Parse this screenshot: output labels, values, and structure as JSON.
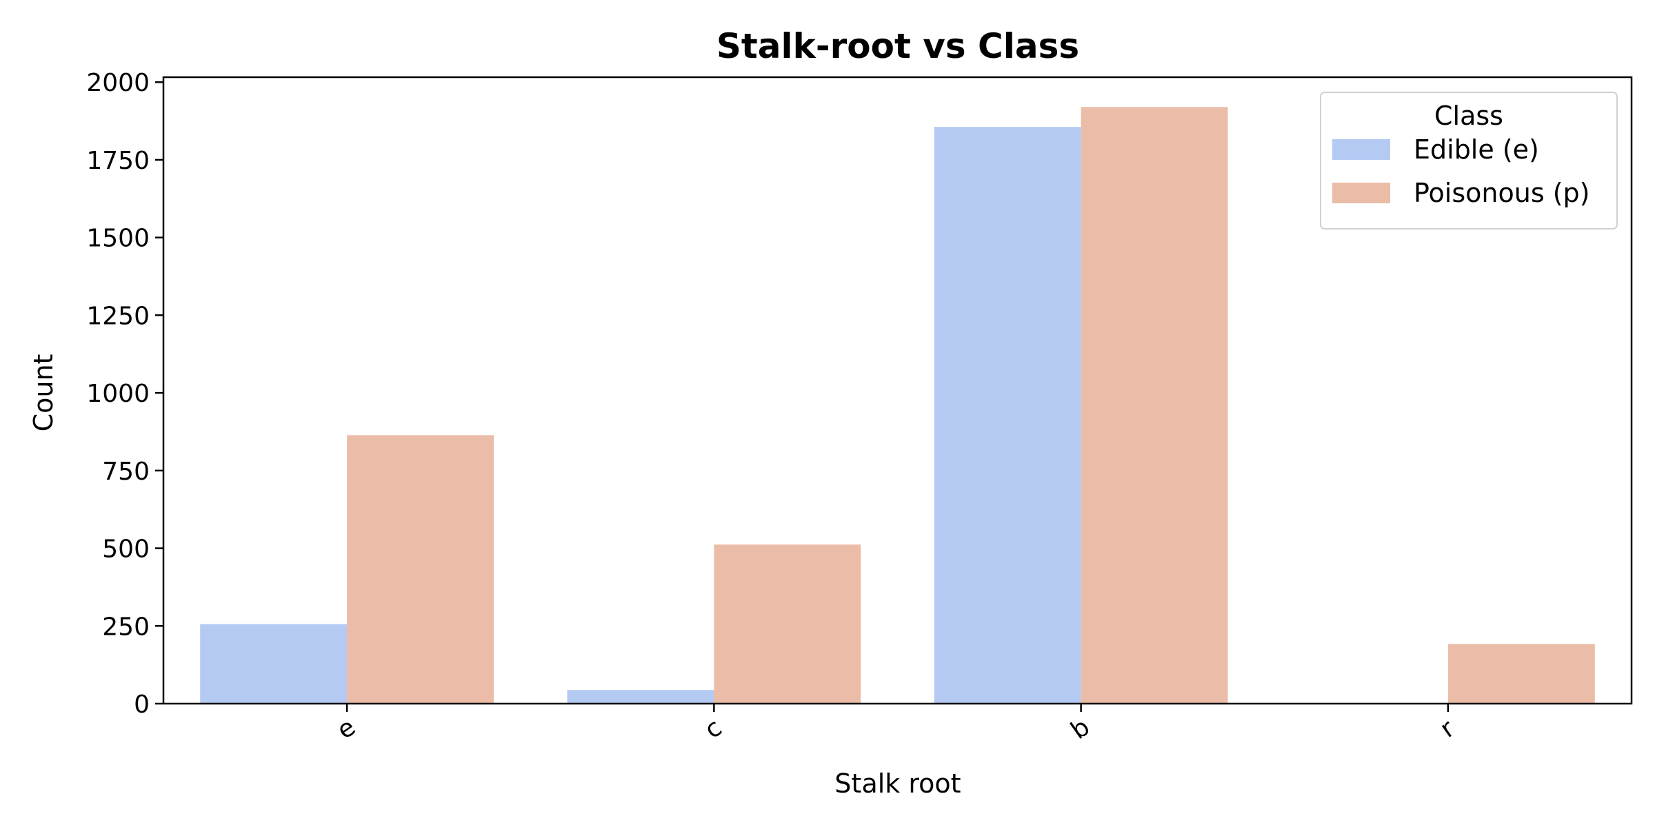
{
  "chart_data": {
    "type": "bar",
    "title": "Stalk-root vs Class",
    "xlabel": "Stalk root",
    "ylabel": "Count",
    "categories": [
      "e",
      "c",
      "b",
      "r"
    ],
    "series": [
      {
        "name": "Edible (e)",
        "values": [
          256,
          44,
          1856,
          0
        ],
        "color": "#b5caf3"
      },
      {
        "name": "Poisonous (p)",
        "values": [
          864,
          512,
          1920,
          192
        ],
        "color": "#ebbca7"
      }
    ],
    "ylim": [
      0,
      2016
    ],
    "yticks": [
      0,
      250,
      500,
      750,
      1000,
      1250,
      1500,
      1750,
      2000
    ],
    "ytick_labels": [
      "0",
      "250",
      "500",
      "750",
      "1000",
      "1250",
      "1500",
      "1750",
      "2000"
    ],
    "grid": false,
    "legend": {
      "title": "Class",
      "position": "top-right"
    },
    "xtick_rotation": -35
  }
}
